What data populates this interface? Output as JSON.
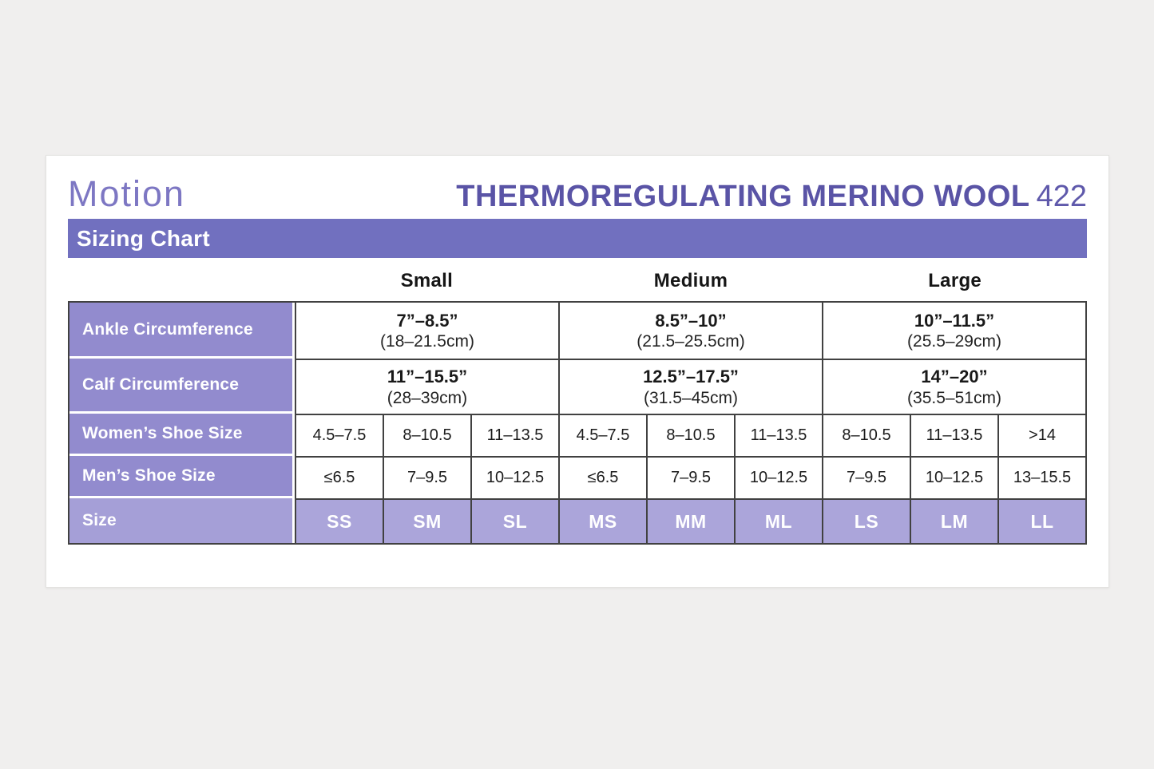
{
  "header": {
    "brand": "Motion",
    "title": "THERMOREGULATING MERINO WOOL",
    "model": "422",
    "banner": "Sizing Chart"
  },
  "colors": {
    "banner_purple": "#7170bf",
    "row_label_purple": "#928bce",
    "size_row_purple": "#aba5da",
    "title_purple": "#5a54a6",
    "brand_purple": "#7d77c3",
    "table_border": "#414141",
    "page_background": "#f0efee"
  },
  "table": {
    "size_groups": [
      "Small",
      "Medium",
      "Large"
    ],
    "rows": [
      {
        "label": "Ankle Circumference",
        "values": [
          {
            "inches": "7”–8.5”",
            "cm": "(18–21.5cm)"
          },
          {
            "inches": "8.5”–10”",
            "cm": "(21.5–25.5cm)"
          },
          {
            "inches": "10”–11.5”",
            "cm": "(25.5–29cm)"
          }
        ]
      },
      {
        "label": "Calf Circumference",
        "values": [
          {
            "inches": "11”–15.5”",
            "cm": "(28–39cm)"
          },
          {
            "inches": "12.5”–17.5”",
            "cm": "(31.5–45cm)"
          },
          {
            "inches": "14”–20”",
            "cm": "(35.5–51cm)"
          }
        ]
      },
      {
        "label": "Women’s Shoe Size",
        "cells": [
          "4.5–7.5",
          "8–10.5",
          "11–13.5",
          "4.5–7.5",
          "8–10.5",
          "11–13.5",
          "8–10.5",
          "11–13.5",
          ">14"
        ]
      },
      {
        "label": "Men’s Shoe Size",
        "cells": [
          "≤6.5",
          "7–9.5",
          "10–12.5",
          "≤6.5",
          "7–9.5",
          "10–12.5",
          "7–9.5",
          "10–12.5",
          "13–15.5"
        ]
      },
      {
        "label": "Size",
        "cells": [
          "SS",
          "SM",
          "SL",
          "MS",
          "MM",
          "ML",
          "LS",
          "LM",
          "LL"
        ]
      }
    ]
  }
}
